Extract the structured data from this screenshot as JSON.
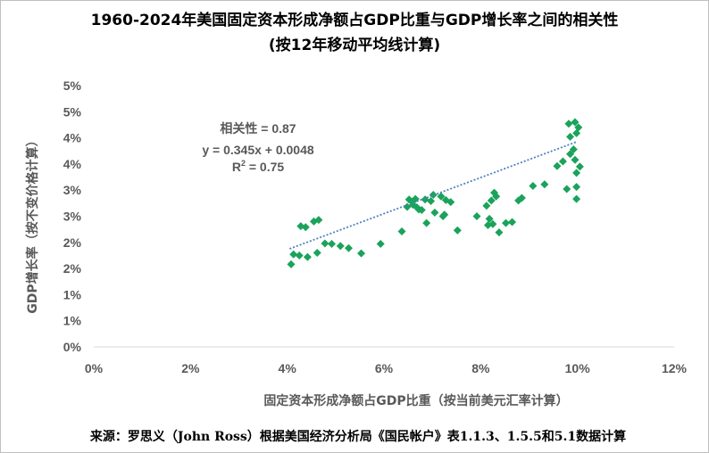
{
  "chart_data": {
    "type": "scatter",
    "title_line1": "1960-2024年美国固定资本形成净额占GDP比重与GDP增长率之间的相关性",
    "title_line2": "(按12年移动平均线计算)",
    "xlabel": "固定资本形成净额占GDP比重（按当前美元汇率计算）",
    "ylabel": "GDP增长率（按不变价格计算）",
    "xlim": [
      0,
      0.12
    ],
    "ylim": [
      0,
      0.05
    ],
    "x_ticks": [
      0,
      0.02,
      0.04,
      0.06,
      0.08,
      0.1,
      0.12
    ],
    "x_tick_labels": [
      "0%",
      "2%",
      "4%",
      "6%",
      "8%",
      "10%",
      "12%"
    ],
    "y_ticks": [
      0,
      0.005,
      0.01,
      0.015,
      0.02,
      0.025,
      0.03,
      0.035,
      0.04,
      0.045,
      0.05
    ],
    "y_tick_labels": [
      "0%",
      "1%",
      "1%",
      "2%",
      "2%",
      "3%",
      "3%",
      "4%",
      "4%",
      "5%",
      "5%"
    ],
    "grid": false,
    "marker_color": "#1aa35a",
    "trendline_color": "#4f81bd",
    "trendline": {
      "slope": 0.345,
      "intercept": 0.0048,
      "x_range": [
        0.0405,
        0.1
      ]
    },
    "annotation": {
      "correlation": "相关性 = 0.87",
      "equation": "y = 0.345x + 0.0048",
      "r2_prefix": "R",
      "r2_sup": "2",
      "r2_suffix": " = 0.75"
    },
    "source": "来源：罗思义（John Ross）根据美国经济分析局《国民帐户》表1.1.3、1.5.5和5.1数据计算",
    "points": [
      [
        0.0408,
        0.0158
      ],
      [
        0.0413,
        0.0177
      ],
      [
        0.0425,
        0.0175
      ],
      [
        0.0428,
        0.0231
      ],
      [
        0.0438,
        0.0229
      ],
      [
        0.0442,
        0.0172
      ],
      [
        0.0455,
        0.024
      ],
      [
        0.0465,
        0.0243
      ],
      [
        0.0462,
        0.018
      ],
      [
        0.0478,
        0.0198
      ],
      [
        0.0492,
        0.0197
      ],
      [
        0.051,
        0.0193
      ],
      [
        0.0527,
        0.0189
      ],
      [
        0.0553,
        0.0179
      ],
      [
        0.0593,
        0.0197
      ],
      [
        0.0637,
        0.0221
      ],
      [
        0.0648,
        0.0268
      ],
      [
        0.0652,
        0.0282
      ],
      [
        0.0658,
        0.0278
      ],
      [
        0.066,
        0.0272
      ],
      [
        0.0665,
        0.0283
      ],
      [
        0.0668,
        0.0267
      ],
      [
        0.0672,
        0.0263
      ],
      [
        0.0678,
        0.0262
      ],
      [
        0.0685,
        0.0282
      ],
      [
        0.0688,
        0.0237
      ],
      [
        0.0697,
        0.0279
      ],
      [
        0.0702,
        0.0291
      ],
      [
        0.0705,
        0.0257
      ],
      [
        0.0718,
        0.0288
      ],
      [
        0.0722,
        0.025
      ],
      [
        0.0725,
        0.0253
      ],
      [
        0.0728,
        0.0281
      ],
      [
        0.0738,
        0.0277
      ],
      [
        0.0752,
        0.0223
      ],
      [
        0.0792,
        0.025
      ],
      [
        0.0812,
        0.027
      ],
      [
        0.0815,
        0.0233
      ],
      [
        0.0818,
        0.0245
      ],
      [
        0.0822,
        0.028
      ],
      [
        0.0825,
        0.0235
      ],
      [
        0.0828,
        0.0295
      ],
      [
        0.0832,
        0.0288
      ],
      [
        0.0838,
        0.0219
      ],
      [
        0.0852,
        0.0237
      ],
      [
        0.0865,
        0.0239
      ],
      [
        0.0878,
        0.028
      ],
      [
        0.0885,
        0.0285
      ],
      [
        0.0908,
        0.0308
      ],
      [
        0.0932,
        0.0311
      ],
      [
        0.0958,
        0.0346
      ],
      [
        0.097,
        0.0355
      ],
      [
        0.0978,
        0.0302
      ],
      [
        0.0982,
        0.0427
      ],
      [
        0.0985,
        0.0402
      ],
      [
        0.0985,
        0.0369
      ],
      [
        0.0992,
        0.0378
      ],
      [
        0.0995,
        0.043
      ],
      [
        0.0995,
        0.0358
      ],
      [
        0.0998,
        0.0409
      ],
      [
        0.0998,
        0.0333
      ],
      [
        0.0998,
        0.0306
      ],
      [
        0.0998,
        0.0283
      ],
      [
        0.1002,
        0.042
      ],
      [
        0.1005,
        0.0345
      ]
    ]
  }
}
